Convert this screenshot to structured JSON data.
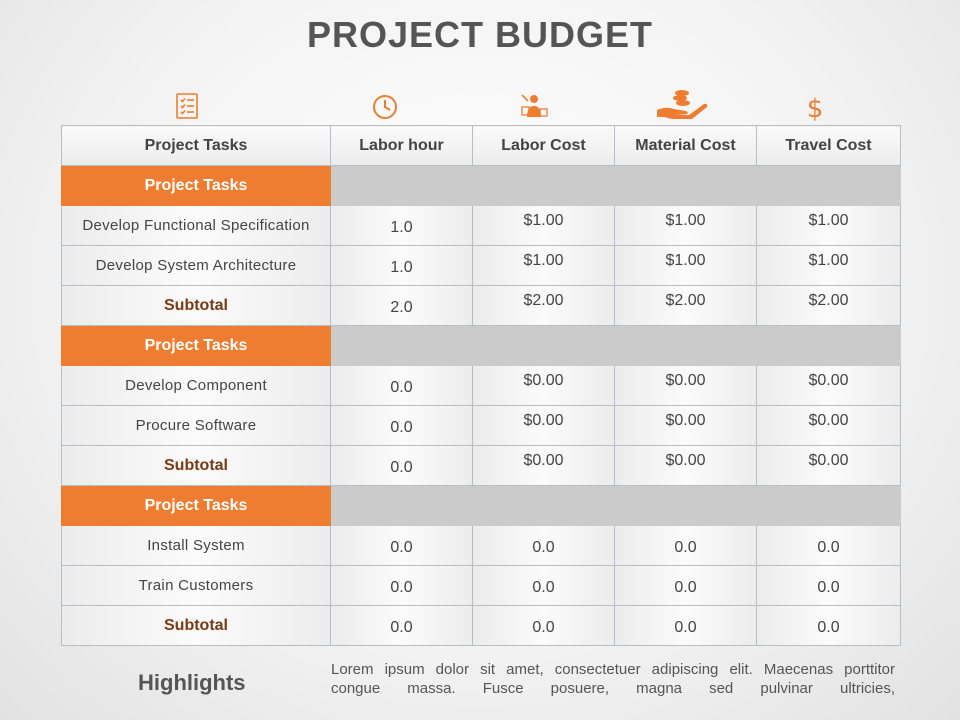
{
  "title": "PROJECT BUDGET",
  "accent_color": "#ee7d31",
  "icons": [
    "checklist-icon",
    "clock-icon",
    "worker-icon",
    "hand-coins-icon",
    "dollar-icon"
  ],
  "columns": [
    "Project Tasks",
    "Labor hour",
    "Labor Cost",
    "Material Cost",
    "Travel Cost"
  ],
  "sections": [
    {
      "label": "Project Tasks",
      "rows": [
        {
          "task": "Develop Functional Specification",
          "hours": "1.0",
          "labor": "$1.00",
          "material": "$1.00",
          "travel": "$1.00"
        },
        {
          "task": "Develop System Architecture",
          "hours": "1.0",
          "labor": "$1.00",
          "material": "$1.00",
          "travel": "$1.00"
        }
      ],
      "subtotal": {
        "label": "Subtotal",
        "hours": "2.0",
        "labor": "$2.00",
        "material": "$2.00",
        "travel": "$2.00"
      }
    },
    {
      "label": "Project Tasks",
      "rows": [
        {
          "task": "Develop Component",
          "hours": "0.0",
          "labor": "$0.00",
          "material": "$0.00",
          "travel": "$0.00"
        },
        {
          "task": "Procure Software",
          "hours": "0.0",
          "labor": "$0.00",
          "material": "$0.00",
          "travel": "$0.00"
        }
      ],
      "subtotal": {
        "label": "Subtotal",
        "hours": "0.0",
        "labor": "$0.00",
        "material": "$0.00",
        "travel": "$0.00"
      }
    },
    {
      "label": "Project Tasks",
      "rows": [
        {
          "task": "Install System",
          "hours": "0.0",
          "labor": "0.0",
          "material": "0.0",
          "travel": "0.0"
        },
        {
          "task": "Train Customers",
          "hours": "0.0",
          "labor": "0.0",
          "material": "0.0",
          "travel": "0.0"
        }
      ],
      "subtotal": {
        "label": "Subtotal",
        "hours": "0.0",
        "labor": "0.0",
        "material": "0.0",
        "travel": "0.0"
      }
    }
  ],
  "highlights": {
    "label": "Highlights",
    "text": "Lorem ipsum dolor sit amet, consectetuer adipiscing elit. Maecenas porttitor congue massa. Fusce posuere, magna sed pulvinar ultricies,"
  }
}
